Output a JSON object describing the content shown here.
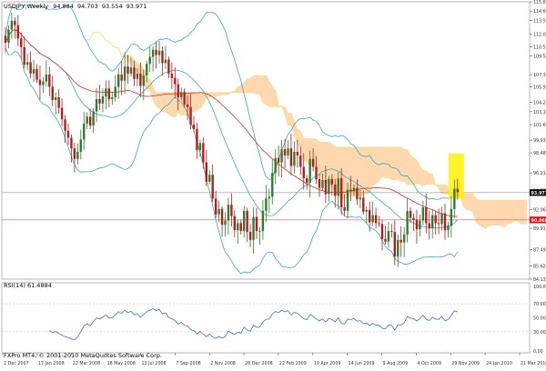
{
  "main_header": {
    "symbol": "USDJPY",
    "timeframe": "Weekly",
    "ohlc": [
      "94.884",
      "94.703",
      "93.554",
      "93.971"
    ]
  },
  "subwindow_header": {
    "label": "RSI(14) 61.4884"
  },
  "copyright": "FXPro MT4, © 2001-2010 MetaQuotes Software Corp.",
  "colors": {
    "background": "#ffffff",
    "bull_candle": "#2e7d32",
    "bear_candle": "#b71c1c",
    "cloud": "#ffd8b0",
    "cloud_edge": "#f2e08a",
    "bollinger": "#33aabb",
    "moving_average": "#e02a2a",
    "rsi_line": "#3a6fd0",
    "grid": "#d8d8d8",
    "highlight_box": "#fff200",
    "current_price_tag": "#000000",
    "hline_price_tag": "#ff0000"
  },
  "chart_data": {
    "type": "candlestick",
    "title": "USDJPY,Weekly",
    "price_axis_ticks": [
      "115.660",
      "114.610",
      "113.535",
      "112.005",
      "110.530",
      "109.500",
      "107.380",
      "105.975",
      "104.225",
      "103.170",
      "101.695",
      "99.935",
      "98.485",
      "96.210",
      "94.235",
      "92.060",
      "89.910",
      "87.490",
      "85.625",
      "84.130"
    ],
    "price_range": [
      84.13,
      115.66
    ],
    "current_price": {
      "value": 93.971,
      "label": "93.971"
    },
    "horizontal_line": {
      "value": 90.868,
      "label": "90.868"
    },
    "x_labels": [
      "2 Dec 2007",
      "17 Jan 2008",
      "22 Mar 2008",
      "18 May 2008",
      "13 Jul 2008",
      "7 Sep 2008",
      "2 Nov 2008",
      "28 Dec 2008",
      "22 Feb 2009",
      "19 Apr 2009",
      "14 Jun 2009",
      "9 Aug 2009",
      "4 Oct 2009",
      "29 Nov 2009",
      "24 Jan 2010",
      "21 Mar 2010"
    ],
    "weekly_closes": [
      111.0,
      112.5,
      113.5,
      113.0,
      111.5,
      110.5,
      108.5,
      108.8,
      107.5,
      108.0,
      106.8,
      106.2,
      106.6,
      107.4,
      106.0,
      104.5,
      104.8,
      103.6,
      102.3,
      101.0,
      100.2,
      99.0,
      97.8,
      98.6,
      100.0,
      101.8,
      102.6,
      101.6,
      103.2,
      104.6,
      104.1,
      104.9,
      105.8,
      104.6,
      104.8,
      106.0,
      107.4,
      106.7,
      108.3,
      107.5,
      108.2,
      106.9,
      107.5,
      106.1,
      107.3,
      108.6,
      109.4,
      110.2,
      109.6,
      110.1,
      108.7,
      109.1,
      107.5,
      107.0,
      106.3,
      104.8,
      105.4,
      104.0,
      103.7,
      101.7,
      101.2,
      98.8,
      99.6,
      97.4,
      95.2,
      96.0,
      93.3,
      91.5,
      92.1,
      90.3,
      90.8,
      92.6,
      91.3,
      89.7,
      90.5,
      89.6,
      91.9,
      89.5,
      88.6,
      91.2,
      89.6,
      89.6,
      91.9,
      93.3,
      93.5,
      96.2,
      97.9,
      97.4,
      98.9,
      98.2,
      99.0,
      97.0,
      98.6,
      98.2,
      96.9,
      95.6,
      95.1,
      97.8,
      96.9,
      95.5,
      94.5,
      95.4,
      93.8,
      95.5,
      94.9,
      93.6,
      95.6,
      92.3,
      91.9,
      94.3,
      94.1,
      94.5,
      93.2,
      93.4,
      91.8,
      92.0,
      90.6,
      91.4,
      90.5,
      90.4,
      88.7,
      88.4,
      89.6,
      89.5,
      86.7,
      88.6,
      88.3,
      89.2,
      91.9,
      91.1,
      90.9,
      89.8,
      90.8,
      92.3,
      90.5,
      89.9,
      91.4,
      90.5,
      90.4,
      91.6,
      89.7,
      90.2,
      92.1,
      94.4,
      94.0
    ],
    "rsi_axis_ticks": [
      "100.00",
      "70.00",
      "50.00",
      "30.00",
      "0.00"
    ],
    "rsi_range": [
      0,
      100
    ],
    "rsi_last": 61.4884,
    "cloud_extends_weeks": 26
  }
}
